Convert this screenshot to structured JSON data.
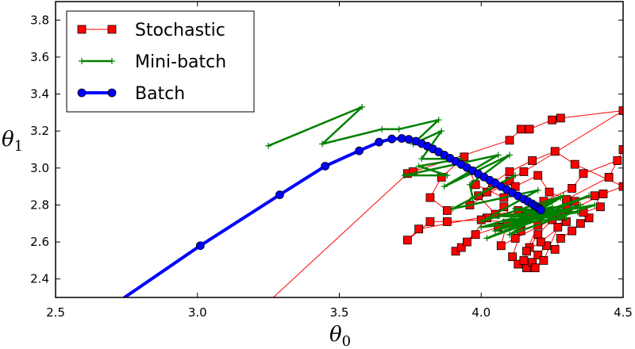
{
  "chart_data": {
    "type": "line",
    "xlabel": "θ",
    "xlabel_sub": "0",
    "ylabel": "θ",
    "ylabel_sub": "1",
    "xlim": [
      2.5,
      4.5
    ],
    "ylim": [
      2.3,
      3.9
    ],
    "xticks": [
      2.5,
      3.0,
      3.5,
      4.0,
      4.5
    ],
    "xtick_labels": [
      "2.5",
      "3.0",
      "3.5",
      "4.0",
      "4.5"
    ],
    "yticks": [
      2.4,
      2.6,
      2.8,
      3.0,
      3.2,
      3.4,
      3.6,
      3.8
    ],
    "ytick_labels": [
      "2.4",
      "2.6",
      "2.8",
      "3.0",
      "3.2",
      "3.4",
      "3.6",
      "3.8"
    ],
    "grid": false,
    "legend_position": "top-left",
    "series": [
      {
        "name": "Stochastic",
        "color": "#ff0000",
        "marker": "square",
        "line_width": 1,
        "points": [
          [
            2.95,
            1.85
          ],
          [
            3.74,
            2.97
          ],
          [
            3.76,
            2.98
          ],
          [
            4.1,
            3.15
          ],
          [
            4.14,
            3.21
          ],
          [
            4.17,
            3.21
          ],
          [
            4.25,
            3.26
          ],
          [
            4.28,
            3.27
          ],
          [
            4.5,
            3.31
          ],
          [
            4.15,
            2.98
          ],
          [
            4.02,
            2.87
          ],
          [
            4.1,
            2.93
          ],
          [
            3.96,
            2.8
          ],
          [
            3.88,
            2.77
          ],
          [
            3.82,
            2.84
          ],
          [
            3.86,
            2.95
          ],
          [
            3.94,
            3.06
          ],
          [
            3.98,
            2.91
          ],
          [
            4.08,
            2.84
          ],
          [
            4.12,
            2.9
          ],
          [
            4.2,
            2.96
          ],
          [
            4.24,
            2.87
          ],
          [
            4.3,
            2.83
          ],
          [
            4.45,
            2.95
          ],
          [
            4.5,
            3.1
          ],
          [
            4.48,
            3.04
          ],
          [
            4.36,
            2.97
          ],
          [
            4.32,
            2.89
          ],
          [
            4.22,
            2.82
          ],
          [
            4.16,
            2.74
          ],
          [
            4.06,
            2.68
          ],
          [
            3.98,
            2.64
          ],
          [
            3.91,
            2.55
          ],
          [
            3.93,
            2.57
          ],
          [
            3.95,
            2.6
          ],
          [
            4.02,
            2.73
          ],
          [
            4.08,
            2.79
          ],
          [
            4.14,
            2.66
          ],
          [
            4.11,
            2.52
          ],
          [
            4.13,
            2.48
          ],
          [
            4.16,
            2.46
          ],
          [
            4.18,
            2.49
          ],
          [
            4.2,
            2.53
          ],
          [
            4.23,
            2.58
          ],
          [
            4.26,
            2.56
          ],
          [
            4.28,
            2.62
          ],
          [
            4.32,
            2.66
          ],
          [
            4.35,
            2.7
          ],
          [
            4.38,
            2.73
          ],
          [
            4.3,
            2.78
          ],
          [
            4.25,
            2.72
          ],
          [
            4.2,
            2.64
          ],
          [
            4.17,
            2.57
          ],
          [
            4.15,
            2.5
          ],
          [
            4.19,
            2.46
          ],
          [
            4.22,
            2.5
          ],
          [
            4.27,
            2.68
          ],
          [
            4.33,
            2.82
          ],
          [
            4.4,
            2.85
          ],
          [
            4.42,
            2.79
          ],
          [
            4.36,
            2.76
          ],
          [
            4.05,
            2.75
          ],
          [
            3.99,
            2.85
          ],
          [
            4.04,
            2.92
          ],
          [
            4.1,
            2.98
          ],
          [
            4.18,
            3.04
          ],
          [
            4.26,
            3.09
          ],
          [
            4.33,
            3.02
          ],
          [
            4.5,
            2.9
          ],
          [
            4.43,
            2.86
          ],
          [
            4.12,
            2.62
          ],
          [
            4.07,
            2.58
          ],
          [
            4.09,
            2.7
          ],
          [
            4.13,
            2.77
          ],
          [
            3.78,
            2.67
          ],
          [
            3.74,
            2.61
          ],
          [
            3.82,
            2.71
          ],
          [
            3.88,
            2.71
          ],
          [
            4.0,
            2.72
          ],
          [
            4.14,
            2.7
          ],
          [
            4.24,
            2.76
          ],
          [
            4.3,
            2.71
          ],
          [
            4.21,
            2.6
          ],
          [
            4.16,
            2.55
          ],
          [
            4.2,
            2.69
          ],
          [
            4.28,
            2.74
          ],
          [
            4.19,
            2.77
          ]
        ]
      },
      {
        "name": "Mini-batch",
        "color": "#008000",
        "marker": "plus",
        "line_width": 2.5,
        "points": [
          [
            3.25,
            3.12
          ],
          [
            3.58,
            3.33
          ],
          [
            3.44,
            3.13
          ],
          [
            3.65,
            3.21
          ],
          [
            3.71,
            3.21
          ],
          [
            3.85,
            3.26
          ],
          [
            3.76,
            3.13
          ],
          [
            3.86,
            3.2
          ],
          [
            3.79,
            3.05
          ],
          [
            3.93,
            3.05
          ],
          [
            3.78,
            3.01
          ],
          [
            3.88,
            2.96
          ],
          [
            3.73,
            2.96
          ],
          [
            4.06,
            3.07
          ],
          [
            3.87,
            2.9
          ],
          [
            4.1,
            3.07
          ],
          [
            3.96,
            2.91
          ],
          [
            3.97,
            2.84
          ],
          [
            4.12,
            2.96
          ],
          [
            3.9,
            2.78
          ],
          [
            4.2,
            2.88
          ],
          [
            4.0,
            2.71
          ],
          [
            4.29,
            2.85
          ],
          [
            4.05,
            2.66
          ],
          [
            4.35,
            2.8
          ],
          [
            4.02,
            2.62
          ],
          [
            4.38,
            2.85
          ],
          [
            4.1,
            2.7
          ],
          [
            4.32,
            2.78
          ],
          [
            4.06,
            2.74
          ],
          [
            4.3,
            2.73
          ],
          [
            4.0,
            2.68
          ],
          [
            4.25,
            2.79
          ],
          [
            4.1,
            2.64
          ],
          [
            4.4,
            2.8
          ],
          [
            4.08,
            2.71
          ],
          [
            4.28,
            2.84
          ],
          [
            4.15,
            2.72
          ],
          [
            4.34,
            2.76
          ],
          [
            4.12,
            2.78
          ],
          [
            4.22,
            2.74
          ]
        ]
      },
      {
        "name": "Batch",
        "color": "#0000ff",
        "marker": "circle",
        "line_width": 4,
        "points": [
          [
            2.6,
            2.15
          ],
          [
            3.01,
            2.58
          ],
          [
            3.29,
            2.855
          ],
          [
            3.45,
            3.01
          ],
          [
            3.57,
            3.093
          ],
          [
            3.64,
            3.14
          ],
          [
            3.685,
            3.157
          ],
          [
            3.72,
            3.16
          ],
          [
            3.745,
            3.155
          ],
          [
            3.77,
            3.145
          ],
          [
            3.79,
            3.132
          ],
          [
            3.81,
            3.118
          ],
          [
            3.83,
            3.103
          ],
          [
            3.85,
            3.087
          ],
          [
            3.87,
            3.07
          ],
          [
            3.89,
            3.053
          ],
          [
            3.91,
            3.036
          ],
          [
            3.93,
            3.019
          ],
          [
            3.95,
            3.002
          ],
          [
            3.97,
            2.985
          ],
          [
            3.99,
            2.968
          ],
          [
            4.01,
            2.951
          ],
          [
            4.03,
            2.934
          ],
          [
            4.05,
            2.917
          ],
          [
            4.07,
            2.9
          ],
          [
            4.09,
            2.883
          ],
          [
            4.11,
            2.866
          ],
          [
            4.13,
            2.849
          ],
          [
            4.15,
            2.832
          ],
          [
            4.165,
            2.819
          ],
          [
            4.18,
            2.806
          ],
          [
            4.19,
            2.796
          ],
          [
            4.198,
            2.788
          ],
          [
            4.205,
            2.78
          ],
          [
            4.21,
            2.773
          ]
        ]
      }
    ]
  }
}
